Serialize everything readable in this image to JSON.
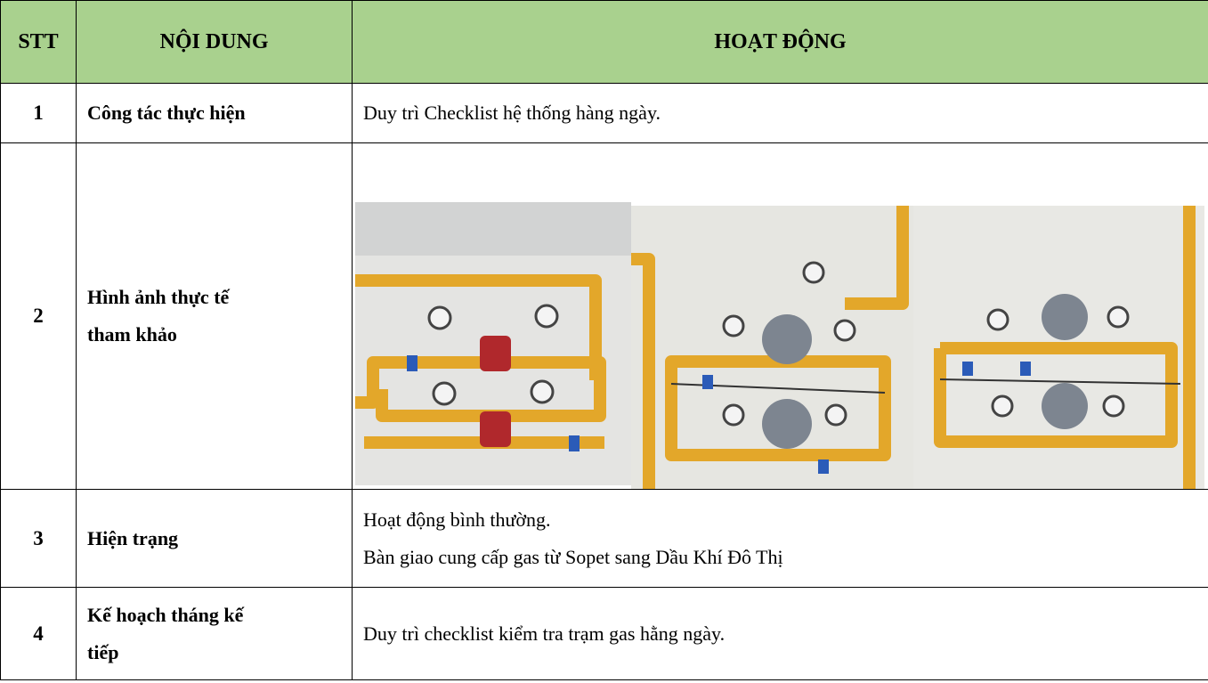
{
  "table": {
    "header": [
      "STT",
      "NỘI DUNG",
      "HOẠT ĐỘNG"
    ],
    "rows": [
      {
        "stt": "1",
        "content": "Công tác thực hiện",
        "activity": [
          "Duy trì Checklist hệ thống hàng ngày."
        ]
      },
      {
        "stt": "2",
        "content": "Hình ảnh thực tế tham khảo"
      },
      {
        "stt": "3",
        "content": "Hiện trạng",
        "activity": [
          "Hoạt động bình thường.",
          "Bàn giao cung cấp gas từ Sopet sang Dầu Khí Đô Thị"
        ]
      },
      {
        "stt": "4",
        "content": "Kế hoạch tháng kế tiếp",
        "activity": [
          "Duy trì checklist kiểm tra trạm gas hằng ngày."
        ]
      }
    ]
  }
}
